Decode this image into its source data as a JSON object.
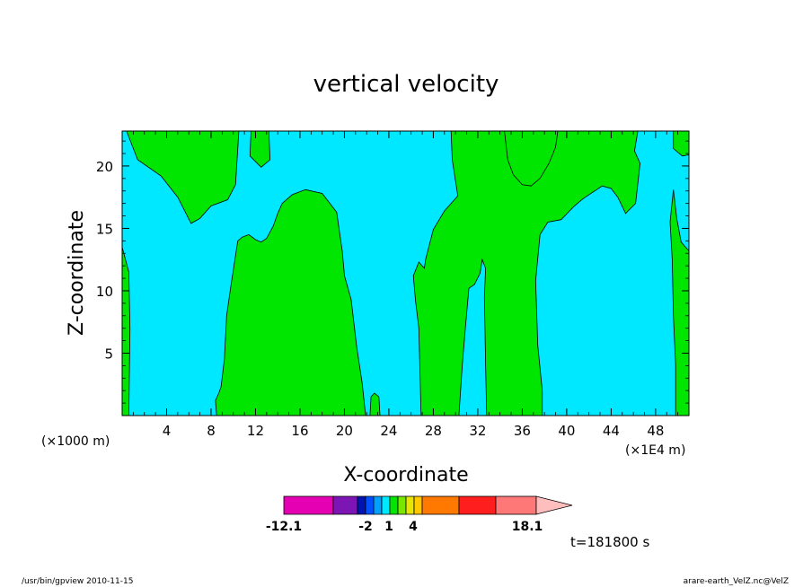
{
  "chart_data": {
    "type": "heatmap",
    "title": "vertical velocity",
    "xlabel": "X-coordinate",
    "ylabel": "Z-coordinate",
    "x_unit_left": "(×1000 m)",
    "x_unit_right": "(×1E4 m)",
    "xlim": [
      0,
      51
    ],
    "ylim": [
      0,
      22.8
    ],
    "x_ticks": [
      4,
      8,
      12,
      16,
      20,
      24,
      28,
      32,
      36,
      40,
      44,
      48
    ],
    "x_tick_labels": [
      "4",
      "8",
      "12",
      "16",
      "20",
      "24",
      "28",
      "32",
      "36",
      "40",
      "44",
      "48"
    ],
    "y_ticks": [
      5,
      10,
      15,
      20
    ],
    "y_tick_labels": [
      "5",
      "10",
      "15",
      "20"
    ],
    "regions": [
      {
        "level": "negative",
        "color": "#00e8ff"
      },
      {
        "level": "positive",
        "color": "#00e600"
      }
    ],
    "green_regions": [
      [
        [
          0,
          22.8
        ],
        [
          0,
          13.5
        ],
        [
          0.6,
          11.5
        ],
        [
          0.7,
          7
        ],
        [
          0.6,
          0
        ],
        [
          0,
          0
        ]
      ],
      [
        [
          0.4,
          22.8
        ],
        [
          1.4,
          20.5
        ],
        [
          3.5,
          19.2
        ],
        [
          5,
          17.5
        ],
        [
          6.2,
          15.4
        ],
        [
          7,
          15.8
        ],
        [
          8,
          16.8
        ],
        [
          9.5,
          17.3
        ],
        [
          10.2,
          18.5
        ],
        [
          10.5,
          22.8
        ]
      ],
      [
        [
          11.6,
          22.8
        ],
        [
          11.5,
          20.8
        ],
        [
          12.5,
          19.9
        ],
        [
          13.3,
          20.5
        ],
        [
          13.2,
          22.8
        ]
      ],
      [
        [
          8.5,
          0
        ],
        [
          8.4,
          1.2
        ],
        [
          8.7,
          1.8
        ],
        [
          8.9,
          2.3
        ],
        [
          9.2,
          4.5
        ],
        [
          9.4,
          8
        ],
        [
          9.8,
          10.5
        ],
        [
          10.4,
          14
        ],
        [
          10.8,
          14.3
        ],
        [
          11.4,
          14.5
        ],
        [
          12,
          14.1
        ],
        [
          12.5,
          13.9
        ],
        [
          13,
          14.2
        ],
        [
          13.6,
          15.2
        ],
        [
          14,
          16.2
        ],
        [
          14.4,
          17
        ],
        [
          15.3,
          17.7
        ],
        [
          16.5,
          18.1
        ],
        [
          18,
          17.8
        ],
        [
          19.3,
          16.3
        ],
        [
          19.8,
          13.2
        ],
        [
          20,
          11.2
        ],
        [
          20.6,
          9.3
        ],
        [
          21.1,
          5.5
        ],
        [
          21.6,
          2.6
        ],
        [
          21.9,
          0
        ]
      ],
      [
        [
          22.3,
          0
        ],
        [
          22.4,
          1.5
        ],
        [
          22.7,
          1.8
        ],
        [
          23.1,
          1.5
        ],
        [
          23.2,
          0
        ]
      ],
      [
        [
          26.9,
          0
        ],
        [
          26.7,
          7
        ],
        [
          26.4,
          9.2
        ],
        [
          26.2,
          11.2
        ],
        [
          26.7,
          12.3
        ],
        [
          27.2,
          11.8
        ],
        [
          27.3,
          12.5
        ],
        [
          28,
          14.9
        ],
        [
          29,
          16.4
        ],
        [
          30.2,
          17.6
        ],
        [
          29.7,
          20.5
        ],
        [
          29.6,
          22.8
        ],
        [
          46.4,
          22.8
        ],
        [
          46.1,
          21.2
        ],
        [
          46.6,
          20.2
        ],
        [
          46.2,
          17
        ],
        [
          45.3,
          16.2
        ],
        [
          44.6,
          17.5
        ],
        [
          44,
          18.2
        ],
        [
          43.2,
          18.4
        ],
        [
          41.5,
          17.4
        ],
        [
          40.7,
          16.8
        ],
        [
          39.5,
          15.7
        ],
        [
          38.3,
          15.5
        ],
        [
          37.6,
          14.5
        ],
        [
          37.2,
          10.8
        ],
        [
          37.4,
          5.6
        ],
        [
          37.8,
          2
        ],
        [
          37.8,
          0
        ],
        [
          32.8,
          0
        ],
        [
          32.7,
          4.2
        ],
        [
          32.6,
          9.5
        ],
        [
          32.7,
          11.8
        ],
        [
          32.4,
          12.5
        ],
        [
          32.2,
          11.4
        ],
        [
          31.7,
          10.5
        ],
        [
          31.2,
          10.2
        ],
        [
          30.9,
          7.2
        ],
        [
          30.6,
          4
        ],
        [
          30.3,
          0
        ]
      ],
      [
        [
          34.4,
          22.8
        ],
        [
          34.7,
          20.5
        ],
        [
          35.2,
          19.3
        ],
        [
          36,
          18.5
        ],
        [
          36.8,
          18.4
        ],
        [
          37.6,
          19
        ],
        [
          38.4,
          20.2
        ],
        [
          39,
          21.5
        ],
        [
          39.2,
          22.8
        ]
      ],
      [
        [
          49.6,
          22.8
        ],
        [
          49.6,
          21.4
        ],
        [
          50.4,
          20.8
        ],
        [
          51,
          20.9
        ],
        [
          51,
          22.8
        ]
      ],
      [
        [
          49.6,
          18.1
        ],
        [
          49.9,
          15.8
        ],
        [
          50.3,
          13.9
        ],
        [
          51,
          13.2
        ],
        [
          51,
          0
        ],
        [
          49.8,
          0
        ],
        [
          49.8,
          4
        ],
        [
          49.6,
          8
        ],
        [
          49.5,
          12.5
        ],
        [
          49.3,
          15.5
        ]
      ]
    ],
    "colorbar": {
      "labels": [
        "-12.1",
        "-2",
        "1",
        "4",
        "18.1"
      ],
      "colors": [
        "#e600b4",
        "#7d14b4",
        "#0014b4",
        "#0050ff",
        "#00a0ff",
        "#00e8ff",
        "#00e600",
        "#78e600",
        "#e6e600",
        "#ffc800",
        "#ff7800",
        "#ff1e1e",
        "#ff7878",
        "#ffbebe"
      ]
    },
    "annotation": "t=181800 s"
  },
  "footer": {
    "left": "/usr/bin/gpview   2010-11-15",
    "right": "arare-earth_VelZ.nc@VelZ"
  }
}
